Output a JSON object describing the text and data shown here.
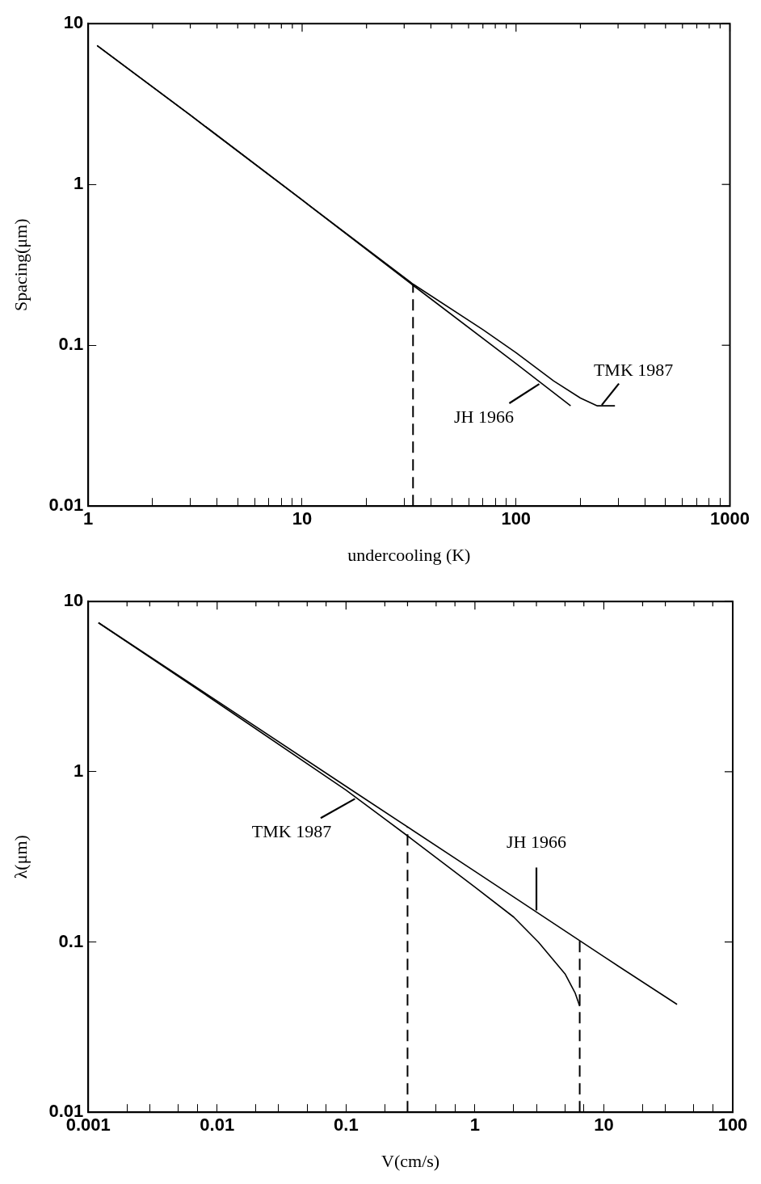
{
  "chart_data": [
    {
      "type": "line",
      "xlabel": "undercooling (K)",
      "ylabel": "Spacing(μm)",
      "log": "xy",
      "grid": false,
      "legend": false,
      "marker": "none",
      "line_style": "solid",
      "xlim": [
        1,
        1000
      ],
      "ylim": [
        0.01,
        10
      ],
      "xticks": [
        1,
        {
          "value": 2,
          "label": null
        },
        {
          "value": 3,
          "label": null
        },
        {
          "value": 4,
          "label": null
        },
        {
          "value": 5,
          "label": null
        },
        {
          "value": 6,
          "label": null
        },
        {
          "value": 7,
          "label": null
        },
        {
          "value": 8,
          "label": null
        },
        {
          "value": 9,
          "label": null
        },
        10,
        {
          "value": 20,
          "label": null
        },
        {
          "value": 30,
          "label": null
        },
        {
          "value": 40,
          "label": null
        },
        {
          "value": 50,
          "label": null
        },
        {
          "value": 60,
          "label": null
        },
        {
          "value": 70,
          "label": null
        },
        {
          "value": 80,
          "label": null
        },
        {
          "value": 90,
          "label": null
        },
        100,
        {
          "value": 200,
          "label": null
        },
        {
          "value": 300,
          "label": null
        },
        {
          "value": 400,
          "label": null
        },
        {
          "value": 500,
          "label": null
        },
        {
          "value": 600,
          "label": null
        },
        {
          "value": 700,
          "label": null
        },
        {
          "value": 800,
          "label": null
        },
        {
          "value": 900,
          "label": null
        },
        1000
      ],
      "yticks": [
        0.01,
        0.1,
        1,
        10
      ],
      "series": [
        {
          "color": "#000000",
          "x": [
            1.1,
            3,
            10,
            33,
            100,
            180
          ],
          "values": [
            7.3,
            2.7,
            0.8,
            0.236,
            0.077,
            0.042
          ]
        },
        {
          "color": "#000000",
          "x": [
            1.1,
            3,
            10,
            33,
            70,
            100,
            150,
            200,
            240,
            290
          ],
          "values": [
            7.3,
            2.7,
            0.8,
            0.24,
            0.125,
            0.09,
            0.06,
            0.047,
            0.042,
            0.042
          ]
        }
      ],
      "ref_lines": [
        {
          "axis": "x",
          "value": 33,
          "line_style": "dashed",
          "color": "#000000"
        }
      ],
      "annotations": [
        {
          "text": "JH 1966",
          "x": 130,
          "y": 0.058
        },
        {
          "text": "TMK 1987",
          "x": 250,
          "y": 0.042
        }
      ]
    },
    {
      "type": "line",
      "xlabel": "V(cm/s)",
      "ylabel": "λ(μm)",
      "log": "xy",
      "grid": false,
      "legend": false,
      "marker": "none",
      "line_style": "solid",
      "xlim": [
        0.001,
        100
      ],
      "ylim": [
        0.01,
        10
      ],
      "xticks": [
        0.001,
        {
          "value": 0.002,
          "label": null
        },
        {
          "value": 0.003,
          "label": null
        },
        {
          "value": 0.005,
          "label": null
        },
        {
          "value": 0.007,
          "label": null
        },
        0.01,
        {
          "value": 0.02,
          "label": null
        },
        {
          "value": 0.03,
          "label": null
        },
        {
          "value": 0.05,
          "label": null
        },
        {
          "value": 0.07,
          "label": null
        },
        0.1,
        {
          "value": 0.2,
          "label": null
        },
        {
          "value": 0.3,
          "label": null
        },
        {
          "value": 0.5,
          "label": null
        },
        {
          "value": 0.7,
          "label": null
        },
        1,
        {
          "value": 2,
          "label": null
        },
        {
          "value": 3,
          "label": null
        },
        {
          "value": 5,
          "label": null
        },
        {
          "value": 7,
          "label": null
        },
        10,
        {
          "value": 20,
          "label": null
        },
        {
          "value": 30,
          "label": null
        },
        {
          "value": 50,
          "label": null
        },
        {
          "value": 70,
          "label": null
        },
        100
      ],
      "yticks": [
        0.01,
        0.1,
        1,
        10
      ],
      "series": [
        {
          "color": "#000000",
          "x": [
            0.0012,
            0.01,
            0.1,
            1,
            10,
            37
          ],
          "values": [
            7.5,
            2.6,
            0.82,
            0.26,
            0.082,
            0.043
          ]
        },
        {
          "color": "#000000",
          "x": [
            0.0012,
            0.01,
            0.1,
            0.3,
            1,
            2,
            3.1,
            5,
            6,
            6.5
          ],
          "values": [
            7.5,
            2.55,
            0.78,
            0.42,
            0.21,
            0.14,
            0.1,
            0.065,
            0.05,
            0.042
          ]
        }
      ],
      "ref_lines": [
        {
          "axis": "x",
          "value": 0.3,
          "line_style": "dashed",
          "color": "#000000"
        },
        {
          "axis": "x",
          "value": 6.5,
          "line_style": "dashed",
          "color": "#000000"
        }
      ],
      "annotations": [
        {
          "text": "JH 1966",
          "x": 3,
          "y": 0.15
        },
        {
          "text": "TMK 1987",
          "x": 0.12,
          "y": 0.7
        }
      ]
    }
  ]
}
